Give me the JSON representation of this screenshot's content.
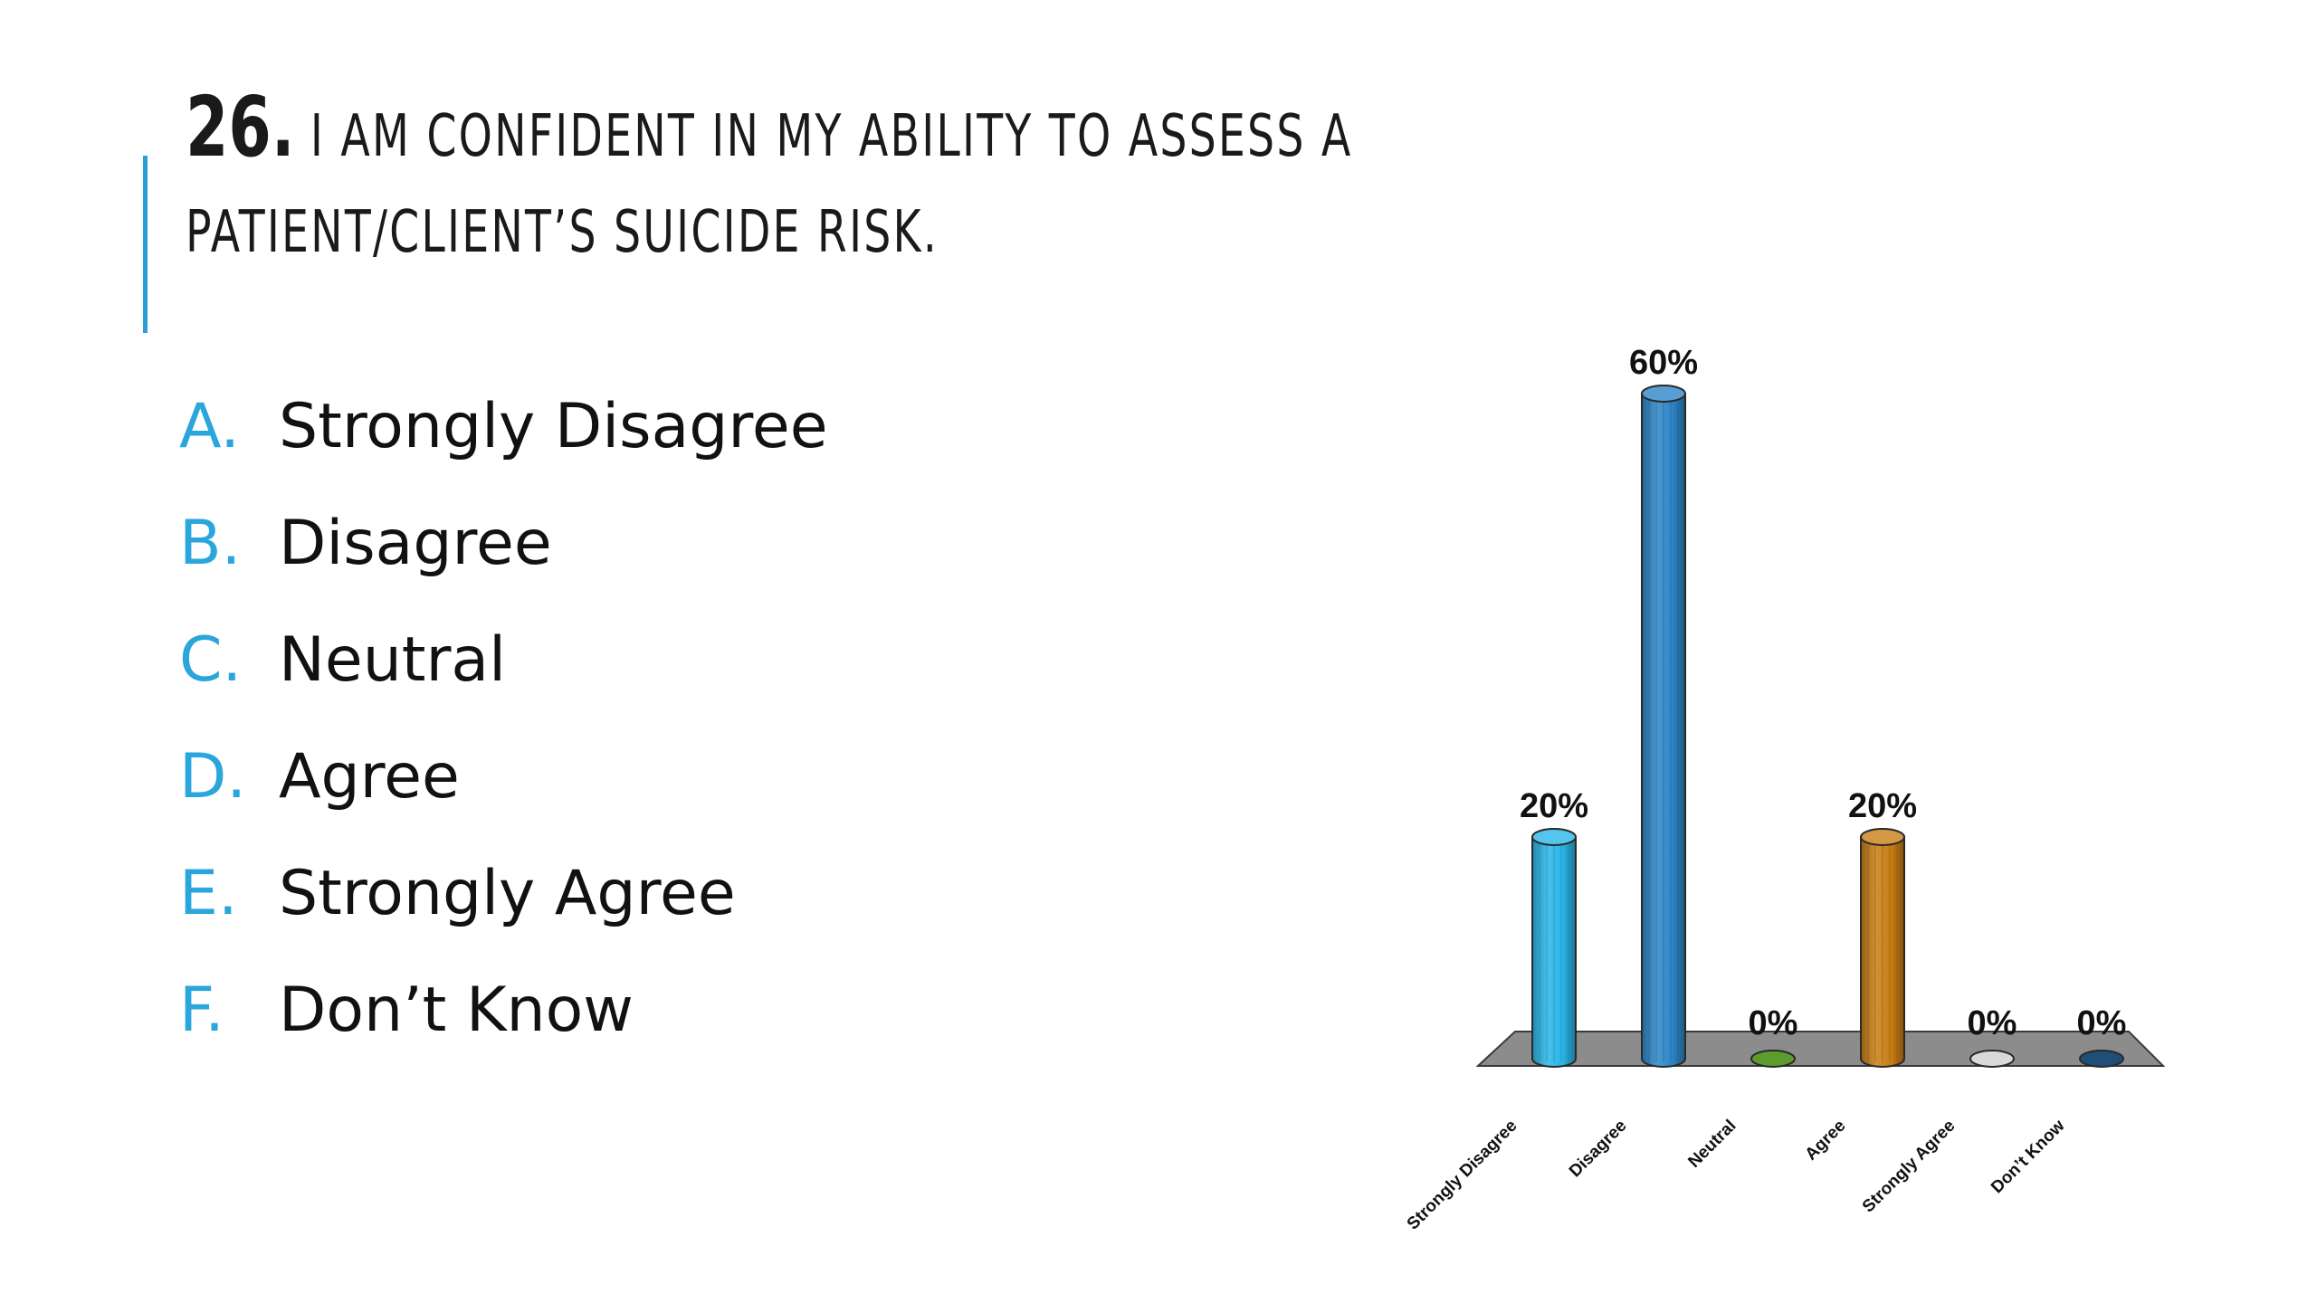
{
  "question": {
    "number": "26.",
    "text": "I am confident in my ability to assess a patient/client’s suicide risk."
  },
  "options": [
    {
      "letter": "A.",
      "label": "Strongly Disagree"
    },
    {
      "letter": "B.",
      "label": "Disagree"
    },
    {
      "letter": "C.",
      "label": "Neutral"
    },
    {
      "letter": "D.",
      "label": "Agree"
    },
    {
      "letter": "E.",
      "label": "Strongly Agree"
    },
    {
      "letter": "F.",
      "label": "Don’t Know"
    }
  ],
  "colors": {
    "accent": "#2a9fd6",
    "option_letter": "#2aa6dc",
    "floor": "#8c8c8c"
  },
  "chart_data": {
    "type": "bar",
    "style": "3d-cylinder",
    "categories": [
      "Strongly Disagree",
      "Disagree",
      "Neutral",
      "Agree",
      "Strongly Agree",
      "Don’t Know"
    ],
    "values": [
      20,
      60,
      0,
      20,
      0,
      0
    ],
    "data_labels": [
      "20%",
      "60%",
      "0%",
      "20%",
      "0%",
      "0%"
    ],
    "colors": [
      "#29b6e8",
      "#2e86c8",
      "#5c9b2e",
      "#c97d14",
      "#d9d9d9",
      "#1f4e79"
    ],
    "ylim": [
      0,
      60
    ],
    "grid": false,
    "legend": "none"
  }
}
